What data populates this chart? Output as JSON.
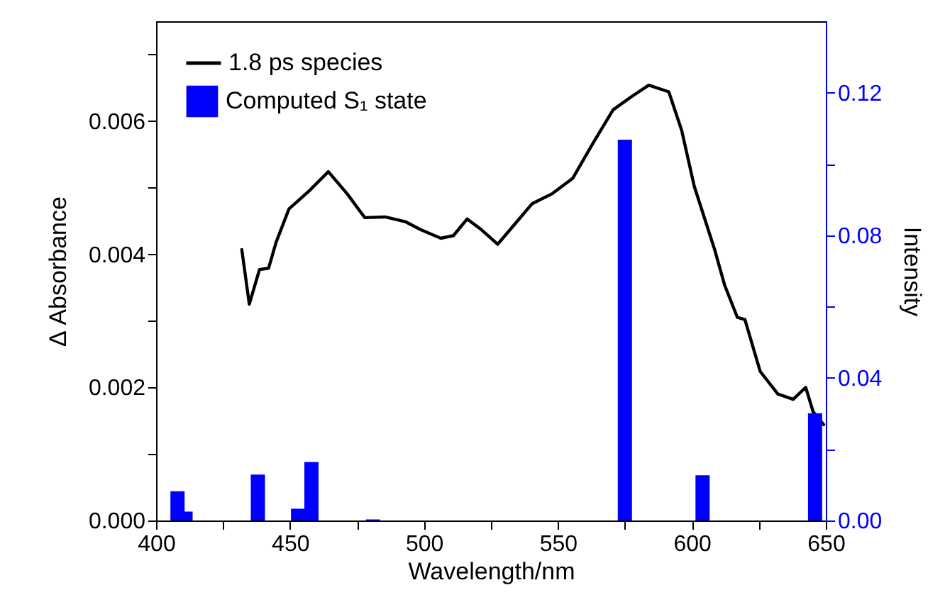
{
  "chart_data": {
    "type": "line",
    "xlabel": "Wavelength/nm",
    "ylabel": "Δ Absorbance",
    "y2label": "Intensity",
    "xlim": [
      400,
      650
    ],
    "xticks": [
      400,
      {
        "value": 425,
        "label": null
      },
      450,
      {
        "value": 475,
        "label": null
      },
      500,
      {
        "value": 525,
        "label": null
      },
      550,
      {
        "value": 575,
        "label": null
      },
      600,
      {
        "value": 625,
        "label": null
      },
      650
    ],
    "ylim": [
      0,
      0.0075
    ],
    "yticks": [
      {
        "value": 0,
        "label": "0.000"
      },
      {
        "value": 0.001,
        "label": null
      },
      0.002,
      {
        "value": 0.003,
        "label": null
      },
      0.004,
      {
        "value": 0.005,
        "label": null
      },
      0.006,
      {
        "value": 0.007,
        "label": null
      }
    ],
    "y2lim": [
      0,
      0.14
    ],
    "y2ticks": [
      {
        "value": 0,
        "label": "0.00"
      },
      {
        "value": 0.02,
        "label": null
      },
      0.04,
      {
        "value": 0.06,
        "label": null
      },
      0.08,
      {
        "value": 0.1,
        "label": null
      },
      0.12
    ],
    "legend": "top left",
    "grid": false,
    "series": [
      {
        "name": "1.8 ps species",
        "color": "#000000",
        "x": [
          432,
          434.8,
          438.6,
          442,
          444.8,
          449.6,
          457.1,
          464.3,
          471.3,
          477.9,
          485.5,
          493,
          498.7,
          506.3,
          511,
          516.1,
          521.4,
          527.5,
          534.7,
          540.4,
          547.9,
          555.5,
          563.1,
          570.6,
          577.2,
          583.9,
          591.4,
          596.2,
          600.9,
          608.5,
          612.2,
          617,
          619.8,
          625.5,
          632.1,
          637.8,
          642.5,
          645.3,
          649.2
        ],
        "values": [
          0.00407,
          0.00325,
          0.00377,
          0.00379,
          0.00418,
          0.00468,
          0.00495,
          0.00524,
          0.00491,
          0.00455,
          0.00456,
          0.00449,
          0.00437,
          0.00424,
          0.00428,
          0.00453,
          0.00437,
          0.00415,
          0.00449,
          0.00476,
          0.00491,
          0.00514,
          0.00567,
          0.00617,
          0.00636,
          0.00654,
          0.00644,
          0.00586,
          0.00502,
          0.00407,
          0.00354,
          0.00305,
          0.00302,
          0.00224,
          0.0019,
          0.00182,
          0.002,
          0.00163,
          0.00144
        ]
      },
      {
        "name": "Computed S₁ state",
        "type": "bar",
        "axis": "y2",
        "color": "#0000ff",
        "x": [
          408,
          411,
          438,
          453,
          458,
          481,
          575,
          604,
          646
        ],
        "values": [
          0.0082,
          0.0025,
          0.0129,
          0.0033,
          0.0164,
          0.0003,
          0.1068,
          0.0127,
          0.0301
        ]
      }
    ]
  }
}
